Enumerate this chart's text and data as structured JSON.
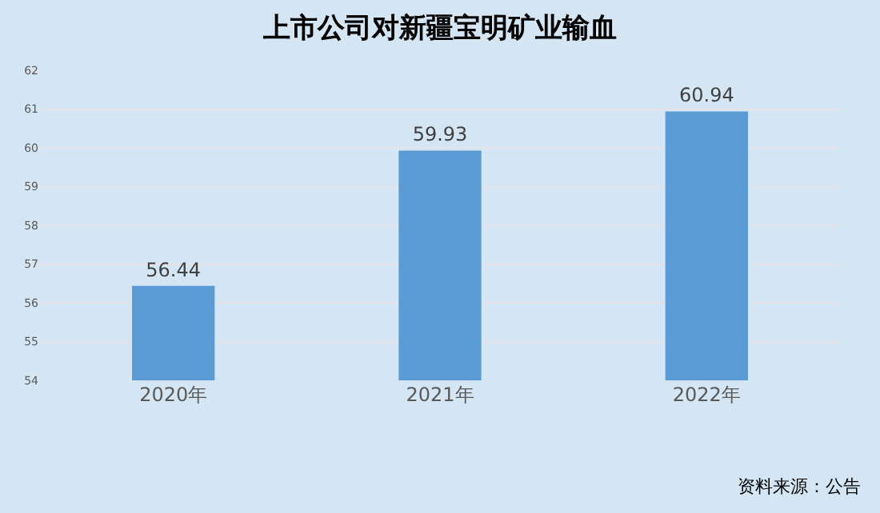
{
  "chart_data": {
    "type": "bar",
    "title": "上市公司对新疆宝明矿业输血",
    "categories": [
      "2020年",
      "2021年",
      "2022年"
    ],
    "values": [
      56.44,
      59.93,
      60.94
    ],
    "color": "#5b9bd5",
    "ylim": [
      54,
      62
    ],
    "yticks": [
      54,
      55,
      56,
      57,
      58,
      59,
      60,
      61,
      62
    ],
    "grid": "y",
    "data_labels": true,
    "annotations": [
      "资料来源：公告"
    ]
  }
}
